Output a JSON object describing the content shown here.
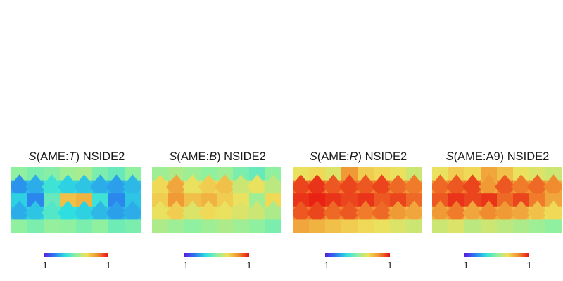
{
  "chart_data": [
    {
      "type": "heatmap",
      "title_prefix": "S",
      "title_open": "(AME:",
      "title_var": "T",
      "title_close": ") NSIDE2",
      "colorbar": {
        "min": -1,
        "max": 1,
        "min_label": "-1",
        "max_label": "1"
      },
      "values": [
        [
          0.0,
          -0.05,
          -0.02,
          0.05,
          0.08,
          -0.05,
          -0.1,
          0.0
        ],
        [
          -0.55,
          -0.45,
          -0.2,
          -0.3,
          -0.35,
          -0.45,
          -0.5,
          -0.4
        ],
        [
          -0.3,
          -0.6,
          -0.1,
          0.45,
          0.5,
          -0.2,
          -0.6,
          -0.35
        ],
        [
          -0.45,
          -0.35,
          -0.15,
          -0.25,
          -0.3,
          -0.4,
          -0.5,
          -0.45
        ],
        [
          0.0,
          -0.05,
          0.02,
          0.0,
          -0.05,
          0.0,
          -0.08,
          -0.05
        ]
      ]
    },
    {
      "type": "heatmap",
      "title_prefix": "S",
      "title_open": "(AME:",
      "title_var": "B",
      "title_close": ") NSIDE2",
      "colorbar": {
        "min": -1,
        "max": 1,
        "min_label": "-1",
        "max_label": "1"
      },
      "values": [
        [
          0.05,
          0.1,
          0.05,
          0.0,
          0.05,
          -0.05,
          -0.1,
          0.0
        ],
        [
          0.35,
          0.55,
          0.3,
          0.4,
          0.45,
          0.2,
          0.3,
          0.15
        ],
        [
          0.4,
          0.6,
          0.45,
          0.5,
          0.4,
          0.3,
          0.05,
          0.35
        ],
        [
          0.3,
          0.4,
          0.25,
          0.35,
          0.3,
          0.25,
          0.2,
          0.1
        ],
        [
          0.1,
          0.05,
          0.0,
          0.05,
          0.1,
          0.05,
          0.0,
          -0.05
        ]
      ]
    },
    {
      "type": "heatmap",
      "title_prefix": "S",
      "title_open": "(AME:",
      "title_var": "R",
      "title_close": ") NSIDE2",
      "colorbar": {
        "min": -1,
        "max": 1,
        "min_label": "-1",
        "max_label": "1"
      },
      "values": [
        [
          0.3,
          0.35,
          0.25,
          0.6,
          0.4,
          0.35,
          0.3,
          0.2
        ],
        [
          0.85,
          0.9,
          0.8,
          0.85,
          0.8,
          0.85,
          0.75,
          0.7
        ],
        [
          0.9,
          0.95,
          0.9,
          0.85,
          0.9,
          0.8,
          0.85,
          0.75
        ],
        [
          0.8,
          0.85,
          0.75,
          0.8,
          0.7,
          0.75,
          0.6,
          0.55
        ],
        [
          0.55,
          0.5,
          0.45,
          0.4,
          0.35,
          0.3,
          0.25,
          0.2
        ]
      ]
    },
    {
      "type": "heatmap",
      "title_prefix": "S",
      "title_open": "(AME:",
      "title_var": "A9",
      "title_close": ") NSIDE2",
      "colorbar": {
        "min": -1,
        "max": 1,
        "min_label": "-1",
        "max_label": "1"
      },
      "values": [
        [
          0.3,
          0.4,
          0.35,
          0.55,
          0.45,
          0.3,
          0.25,
          0.2
        ],
        [
          0.75,
          0.8,
          0.85,
          0.6,
          0.8,
          0.7,
          0.75,
          0.65
        ],
        [
          0.8,
          0.9,
          0.85,
          0.9,
          0.75,
          0.85,
          0.7,
          0.55
        ],
        [
          0.6,
          0.7,
          0.55,
          0.65,
          0.6,
          0.55,
          0.45,
          0.35
        ],
        [
          0.2,
          0.25,
          0.15,
          0.2,
          0.15,
          0.1,
          0.05,
          0.0
        ]
      ]
    }
  ]
}
